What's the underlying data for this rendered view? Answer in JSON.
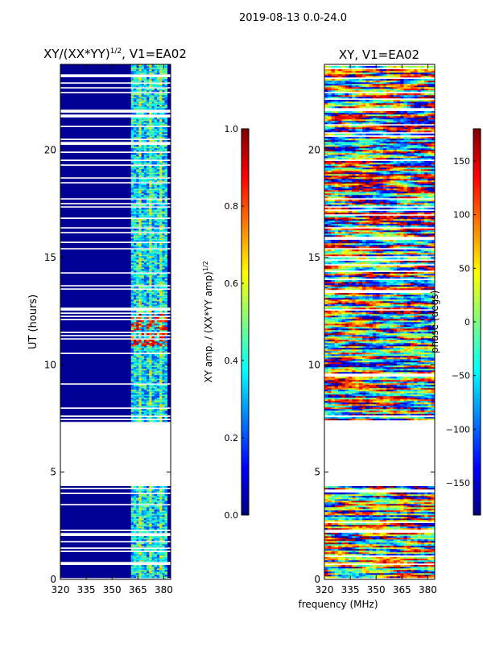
{
  "figure_title": "2019-08-13 0.0-24.0",
  "colors": {
    "jet": [
      "#00007f",
      "#0000ff",
      "#007fff",
      "#00ffff",
      "#7fff7f",
      "#ffff00",
      "#ff7f00",
      "#ff0000",
      "#7f0000"
    ],
    "bg": "#ffffff",
    "axis": "#000000"
  },
  "shared": {
    "xlabel": "frequency (MHz)",
    "ylabel": "UT (hours)"
  },
  "chart_data": [
    {
      "type": "heatmap",
      "title": "XY/(XX*YY)",
      "title_sup": "1/2",
      "title_suffix": ", V1=EA02",
      "xlim": [
        320,
        384
      ],
      "ylim": [
        0,
        24
      ],
      "xticks": [
        320,
        335,
        350,
        365,
        380
      ],
      "yticks": [
        0,
        5,
        10,
        15,
        20
      ],
      "colorbar": {
        "label": "XY amp. / (XX*YY amp)",
        "label_sup": "1/2",
        "range": [
          0,
          1
        ],
        "ticks": [
          "0.0",
          "0.2",
          "0.4",
          "0.6",
          "0.8",
          "1.0"
        ],
        "tick_values": [
          0,
          0.2,
          0.4,
          0.6,
          0.8,
          1.0
        ]
      },
      "flagged_ut_ranges": [
        [
          4.3,
          7.3
        ]
      ],
      "rfi_band_mhz": [
        361,
        381
      ],
      "rfi_enhanced_ut_ranges": [
        [
          10.8,
          12.4
        ]
      ]
    },
    {
      "type": "heatmap",
      "title": "XY, V1=EA02",
      "xlim": [
        320,
        384
      ],
      "ylim": [
        0,
        24
      ],
      "xticks": [
        320,
        335,
        350,
        365,
        380
      ],
      "yticks": [
        0,
        5,
        10,
        15,
        20
      ],
      "colorbar": {
        "label": "phase (degs)",
        "range": [
          -180,
          180
        ],
        "ticks": [
          "−150",
          "−100",
          "−50",
          "0",
          "50",
          "100",
          "150"
        ],
        "tick_values": [
          -150,
          -100,
          -50,
          0,
          50,
          100,
          150
        ]
      },
      "flagged_ut_ranges": [
        [
          4.3,
          7.3
        ]
      ]
    }
  ]
}
